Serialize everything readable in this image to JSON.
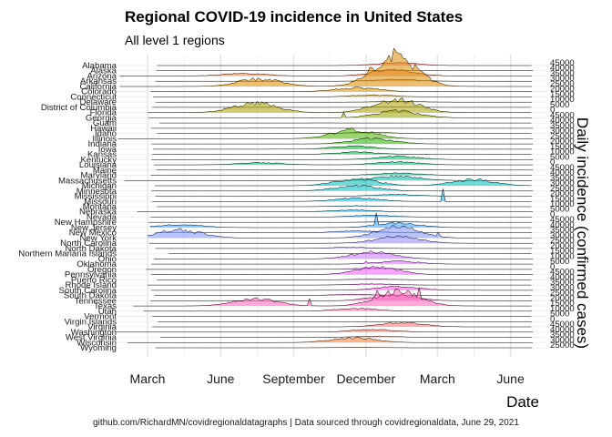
{
  "title": "Regional COVID-19 incidence in United States",
  "subtitle": "All level 1 regions",
  "caption": "github.com/RichardMN/covidregionaldatagraphs | Data sourced through covidregionaldata, June 29, 2021",
  "chart_data": {
    "type": "area",
    "subtype": "ridgeline",
    "xlabel": "Date",
    "ylabel": "Daily incidence (confirmed cases)",
    "x_ticks": [
      "March",
      "June",
      "September",
      "December",
      "March",
      "June"
    ],
    "x_tick_dates": [
      "2020-03-01",
      "2020-06-01",
      "2020-09-01",
      "2020-12-01",
      "2021-03-01",
      "2021-06-01"
    ],
    "xlim": [
      "2020-01-22",
      "2021-06-29"
    ],
    "y_ticks": [
      0,
      5000,
      10000,
      15000,
      20000,
      25000,
      30000,
      35000,
      40000,
      45000
    ],
    "y_tick_labels": [
      "0",
      "5000",
      "10000",
      "15000",
      "20000",
      "25000",
      "30000",
      "35000",
      "40000",
      "45000"
    ],
    "grid": true,
    "legend": "none",
    "series": [
      {
        "name": "Alabama",
        "start": "2020-03-13",
        "color": "#F8766D",
        "peaks": [
          [
            "2021-01-10",
            3500
          ]
        ]
      },
      {
        "name": "Alaska",
        "start": "2020-03-12",
        "color": "#F47B5B",
        "peaks": [
          [
            "2020-12-01",
            500
          ]
        ]
      },
      {
        "name": "Arizona",
        "start": "2020-01-26",
        "color": "#EE8043",
        "peaks": [
          [
            "2020-07-01",
            3500
          ],
          [
            "2021-01-05",
            8000
          ]
        ]
      },
      {
        "name": "Arkansas",
        "start": "2020-03-11",
        "color": "#E7851E",
        "peaks": [
          [
            "2021-01-08",
            2500
          ]
        ]
      },
      {
        "name": "California",
        "start": "2020-01-26",
        "color": "#DE8A00",
        "peaks": [
          [
            "2020-07-20",
            10000
          ],
          [
            "2021-01-05",
            42000
          ]
        ]
      },
      {
        "name": "Colorado",
        "start": "2020-03-05",
        "color": "#D58F00",
        "peaks": [
          [
            "2020-11-20",
            5000
          ]
        ]
      },
      {
        "name": "Connecticut",
        "start": "2020-03-08",
        "color": "#CB9300",
        "peaks": [
          [
            "2020-12-10",
            2500
          ]
        ]
      },
      {
        "name": "Delaware",
        "start": "2020-03-11",
        "color": "#C09700",
        "peaks": [
          [
            "2021-01-12",
            900
          ]
        ]
      },
      {
        "name": "District of Columbia",
        "start": "2020-03-07",
        "color": "#B49B00",
        "peaks": [
          [
            "2021-01-10",
            400
          ]
        ]
      },
      {
        "name": "Florida",
        "start": "2020-03-01",
        "color": "#A79F00",
        "peaks": [
          [
            "2020-07-15",
            13000
          ],
          [
            "2021-01-08",
            18000
          ]
        ]
      },
      {
        "name": "Georgia",
        "start": "2020-03-02",
        "color": "#99A300",
        "peaks": [
          [
            "2021-01-10",
            9000
          ]
        ],
        "spikes": [
          [
            "2020-11-03",
            10000
          ]
        ]
      },
      {
        "name": "Guam",
        "start": "2020-03-16",
        "color": "#8AA600",
        "peaks": [
          [
            "2020-10-05",
            150
          ]
        ]
      },
      {
        "name": "Hawaii",
        "start": "2020-03-06",
        "color": "#79A900",
        "peaks": [
          [
            "2020-08-25",
            300
          ]
        ]
      },
      {
        "name": "Idaho",
        "start": "2020-03-13",
        "color": "#66AC00",
        "peaks": [
          [
            "2020-12-05",
            1500
          ]
        ]
      },
      {
        "name": "Illinois",
        "start": "2020-01-24",
        "color": "#4EAF00",
        "peaks": [
          [
            "2020-11-15",
            12000
          ]
        ]
      },
      {
        "name": "Indiana",
        "start": "2020-03-06",
        "color": "#26B100",
        "peaks": [
          [
            "2020-12-10",
            7000
          ]
        ]
      },
      {
        "name": "Iowa",
        "start": "2020-03-08",
        "color": "#00B32B",
        "peaks": [
          [
            "2020-11-15",
            4000
          ]
        ]
      },
      {
        "name": "Kansas",
        "start": "2020-03-07",
        "color": "#00B549",
        "peaks": [
          [
            "2020-11-20",
            3000
          ]
        ]
      },
      {
        "name": "Kentucky",
        "start": "2020-03-06",
        "color": "#00B660",
        "peaks": [
          [
            "2021-01-10",
            4500
          ]
        ]
      },
      {
        "name": "Louisiana",
        "start": "2020-03-09",
        "color": "#00B874",
        "peaks": [
          [
            "2020-07-20",
            3000
          ],
          [
            "2021-01-10",
            4000
          ]
        ]
      },
      {
        "name": "Maine",
        "start": "2020-03-12",
        "color": "#00B987",
        "peaks": [
          [
            "2021-01-15",
            700
          ]
        ]
      },
      {
        "name": "Maryland",
        "start": "2020-03-05",
        "color": "#00BA98",
        "peaks": [
          [
            "2021-01-10",
            3000
          ]
        ]
      },
      {
        "name": "Massachusetts",
        "start": "2020-02-01",
        "color": "#00BAA8",
        "peaks": [
          [
            "2021-01-10",
            6000
          ]
        ]
      },
      {
        "name": "Michigan",
        "start": "2020-03-10",
        "color": "#00BAB7",
        "peaks": [
          [
            "2020-11-20",
            9000
          ],
          [
            "2021-04-15",
            8000
          ]
        ]
      },
      {
        "name": "Minnesota",
        "start": "2020-03-06",
        "color": "#00B9C5",
        "peaks": [
          [
            "2020-11-20",
            7000
          ]
        ]
      },
      {
        "name": "Mississippi",
        "start": "2020-03-11",
        "color": "#00B8D2",
        "peaks": [
          [
            "2021-01-08",
            2500
          ]
        ]
      },
      {
        "name": "Missouri",
        "start": "2020-03-07",
        "color": "#00B6DE",
        "peaks": [
          [
            "2020-11-20",
            4500
          ]
        ],
        "spikes": [
          [
            "2021-03-08",
            15000
          ]
        ]
      },
      {
        "name": "Montana",
        "start": "2020-03-13",
        "color": "#00B3E9",
        "peaks": [
          [
            "2020-11-20",
            1200
          ]
        ]
      },
      {
        "name": "Nebraska",
        "start": "2020-02-17",
        "color": "#00AFF3",
        "peaks": [
          [
            "2020-11-15",
            2500
          ]
        ]
      },
      {
        "name": "Nevada",
        "start": "2020-03-05",
        "color": "#00ABFC",
        "peaks": [
          [
            "2020-12-10",
            2500
          ]
        ]
      },
      {
        "name": "New Hampshire",
        "start": "2020-03-02",
        "color": "#00A6FF",
        "peaks": [
          [
            "2021-01-05",
            900
          ]
        ]
      },
      {
        "name": "New Jersey",
        "start": "2020-03-04",
        "color": "#37A0FF",
        "peaks": [
          [
            "2020-04-10",
            4000
          ],
          [
            "2021-01-10",
            6000
          ]
        ],
        "spikes": [
          [
            "2020-12-15",
            13000
          ]
        ]
      },
      {
        "name": "New Mexico",
        "start": "2020-03-11",
        "color": "#6199FF",
        "peaks": [
          [
            "2020-11-20",
            2500
          ]
        ]
      },
      {
        "name": "New York",
        "start": "2020-03-01",
        "color": "#7F92FF",
        "peaks": [
          [
            "2020-04-10",
            11000
          ],
          [
            "2021-01-10",
            15000
          ]
        ],
        "spikes": [
          [
            "2021-03-01",
            5000
          ]
        ]
      },
      {
        "name": "North Carolina",
        "start": "2020-03-03",
        "color": "#978AFF",
        "peaks": [
          [
            "2021-01-10",
            9000
          ]
        ]
      },
      {
        "name": "North Dakota",
        "start": "2020-03-11",
        "color": "#AB82FF",
        "peaks": [
          [
            "2020-11-10",
            1500
          ]
        ]
      },
      {
        "name": "Northern Mariana Islands",
        "start": "2020-03-28",
        "color": "#BC7AFF",
        "peaks": [
          [
            "2021-01-01",
            20
          ]
        ]
      },
      {
        "name": "Ohio",
        "start": "2020-03-09",
        "color": "#CB72FF",
        "peaks": [
          [
            "2020-12-10",
            9000
          ]
        ]
      },
      {
        "name": "Oklahoma",
        "start": "2020-03-06",
        "color": "#D86AFF",
        "peaks": [
          [
            "2021-01-10",
            4000
          ]
        ],
        "spikes": [
          [
            "2020-12-01",
            3000
          ]
        ]
      },
      {
        "name": "Oregon",
        "start": "2020-02-28",
        "color": "#E463FF",
        "peaks": [
          [
            "2020-12-10",
            1500
          ]
        ]
      },
      {
        "name": "Pennsylvania",
        "start": "2020-03-06",
        "color": "#EE5DFF",
        "peaks": [
          [
            "2020-12-15",
            10000
          ]
        ]
      },
      {
        "name": "Puerto Rico",
        "start": "2020-03-13",
        "color": "#F659F8",
        "peaks": [
          [
            "2020-12-10",
            1000
          ]
        ]
      },
      {
        "name": "Rhode Island",
        "start": "2020-03-01",
        "color": "#FC57EF",
        "peaks": [
          [
            "2020-12-10",
            1500
          ]
        ]
      },
      {
        "name": "South Carolina",
        "start": "2020-03-06",
        "color": "#FF58E4",
        "peaks": [
          [
            "2021-01-10",
            5000
          ]
        ]
      },
      {
        "name": "South Dakota",
        "start": "2020-03-10",
        "color": "#FF5AD8",
        "peaks": [
          [
            "2020-11-15",
            1500
          ]
        ]
      },
      {
        "name": "Tennessee",
        "start": "2020-03-05",
        "color": "#FF5ECB",
        "peaks": [
          [
            "2021-01-05",
            8000
          ]
        ],
        "spikes": [
          [
            "2020-12-15",
            12000
          ]
        ]
      },
      {
        "name": "Texas",
        "start": "2020-02-12",
        "color": "#FF62BC",
        "peaks": [
          [
            "2020-07-15",
            10000
          ],
          [
            "2021-01-10",
            20000
          ]
        ],
        "spikes": [
          [
            "2020-09-20",
            8000
          ],
          [
            "2021-02-05",
            12000
          ]
        ]
      },
      {
        "name": "Utah",
        "start": "2020-02-25",
        "color": "#FF67AD",
        "peaks": [
          [
            "2020-11-20",
            3500
          ]
        ]
      },
      {
        "name": "Vermont",
        "start": "2020-03-07",
        "color": "#FF6B9C",
        "peaks": [
          [
            "2020-12-20",
            200
          ]
        ]
      },
      {
        "name": "Virgin Islands",
        "start": "2020-03-14",
        "color": "#FF6F8A",
        "peaks": [
          [
            "2020-08-15",
            50
          ]
        ]
      },
      {
        "name": "Virginia",
        "start": "2020-03-07",
        "color": "#FC7277",
        "peaks": [
          [
            "2021-01-15",
            6000
          ]
        ]
      },
      {
        "name": "Washington",
        "start": "2020-01-21",
        "color": "#F87562",
        "peaks": [
          [
            "2020-12-10",
            3500
          ]
        ]
      },
      {
        "name": "West Virginia",
        "start": "2020-03-17",
        "color": "#F4784C",
        "peaks": [
          [
            "2020-12-15",
            1500
          ]
        ]
      },
      {
        "name": "Wisconsin",
        "start": "2020-02-05",
        "color": "#F07B37",
        "peaks": [
          [
            "2020-11-15",
            6500
          ]
        ]
      },
      {
        "name": "Wyoming",
        "start": "2020-03-11",
        "color": "#EC7E20",
        "peaks": [
          [
            "2020-11-20",
            800
          ]
        ]
      }
    ]
  }
}
